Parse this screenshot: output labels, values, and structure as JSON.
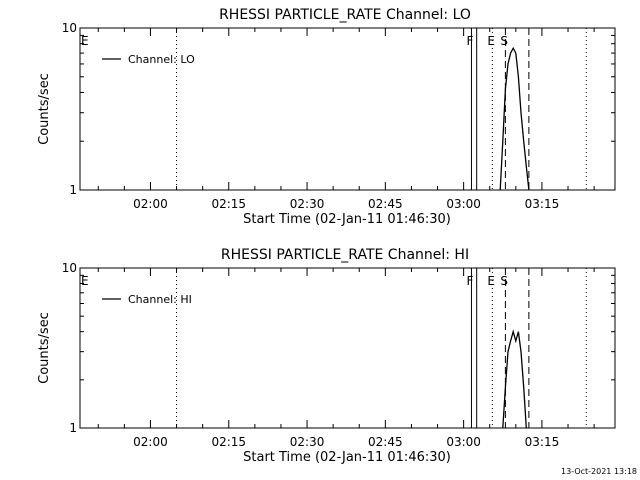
{
  "chart_data": [
    {
      "type": "line",
      "title": "RHESSI PARTICLE_RATE Channel: LO",
      "xlabel": "Start Time (02-Jan-11 01:46:30)",
      "ylabel": "Counts/sec",
      "yscale": "log",
      "ylim": [
        1,
        10
      ],
      "xlim": [
        "01:46:30",
        "03:29:00"
      ],
      "y_ticks": [
        {
          "value": 1,
          "label": "1"
        },
        {
          "value": 10,
          "label": "10"
        }
      ],
      "x_ticks": [
        "02:00",
        "02:15",
        "02:30",
        "02:45",
        "03:00",
        "03:15"
      ],
      "legend": {
        "position": "top-left",
        "entries": [
          "Channel: LO"
        ]
      },
      "series": [
        {
          "name": "Channel: LO",
          "x": [
            "03:07:00",
            "03:07:30",
            "03:08:00",
            "03:08:30",
            "03:09:00",
            "03:09:30",
            "03:10:00",
            "03:10:30",
            "03:11:00",
            "03:11:30",
            "03:12:00",
            "03:12:30"
          ],
          "y": [
            1.0,
            2.0,
            4.2,
            6.0,
            7.0,
            7.5,
            7.0,
            5.0,
            3.0,
            2.0,
            1.4,
            1.0
          ]
        }
      ],
      "flags": [
        {
          "label": "E",
          "time": "01:46:30",
          "style": "none"
        },
        {
          "label": "",
          "time": "02:05:00",
          "style": "dotted"
        },
        {
          "label": "F",
          "time": "03:01:30",
          "style": "solid"
        },
        {
          "label": "",
          "time": "03:02:30",
          "style": "solid"
        },
        {
          "label": "E",
          "time": "03:05:30",
          "style": "dotted"
        },
        {
          "label": "S",
          "time": "03:08:00",
          "style": "dashed"
        },
        {
          "label": "",
          "time": "03:12:30",
          "style": "dashed"
        },
        {
          "label": "",
          "time": "03:23:30",
          "style": "dotted"
        }
      ]
    },
    {
      "type": "line",
      "title": "RHESSI PARTICLE_RATE Channel: HI",
      "xlabel": "Start Time (02-Jan-11 01:46:30)",
      "ylabel": "Counts/sec",
      "yscale": "log",
      "ylim": [
        1,
        10
      ],
      "xlim": [
        "01:46:30",
        "03:29:00"
      ],
      "y_ticks": [
        {
          "value": 1,
          "label": "1"
        },
        {
          "value": 10,
          "label": "10"
        }
      ],
      "x_ticks": [
        "02:00",
        "02:15",
        "02:30",
        "02:45",
        "03:00",
        "03:15"
      ],
      "legend": {
        "position": "top-left",
        "entries": [
          "Channel: HI"
        ]
      },
      "series": [
        {
          "name": "Channel: HI",
          "x": [
            "03:07:30",
            "03:08:00",
            "03:08:30",
            "03:09:00",
            "03:09:30",
            "03:10:00",
            "03:10:30",
            "03:11:00",
            "03:11:30",
            "03:12:00"
          ],
          "y": [
            1.0,
            1.8,
            3.0,
            3.5,
            4.0,
            3.5,
            4.0,
            3.0,
            1.8,
            1.0
          ]
        }
      ],
      "flags": [
        {
          "label": "E",
          "time": "01:46:30",
          "style": "none"
        },
        {
          "label": "",
          "time": "02:05:00",
          "style": "dotted"
        },
        {
          "label": "F",
          "time": "03:01:30",
          "style": "solid"
        },
        {
          "label": "",
          "time": "03:02:30",
          "style": "solid"
        },
        {
          "label": "E",
          "time": "03:05:30",
          "style": "dotted"
        },
        {
          "label": "S",
          "time": "03:08:00",
          "style": "dashed"
        },
        {
          "label": "",
          "time": "03:12:30",
          "style": "dashed"
        },
        {
          "label": "",
          "time": "03:23:30",
          "style": "dotted"
        }
      ]
    }
  ],
  "footer": {
    "timestamp": "13-Oct-2021 13:18"
  }
}
